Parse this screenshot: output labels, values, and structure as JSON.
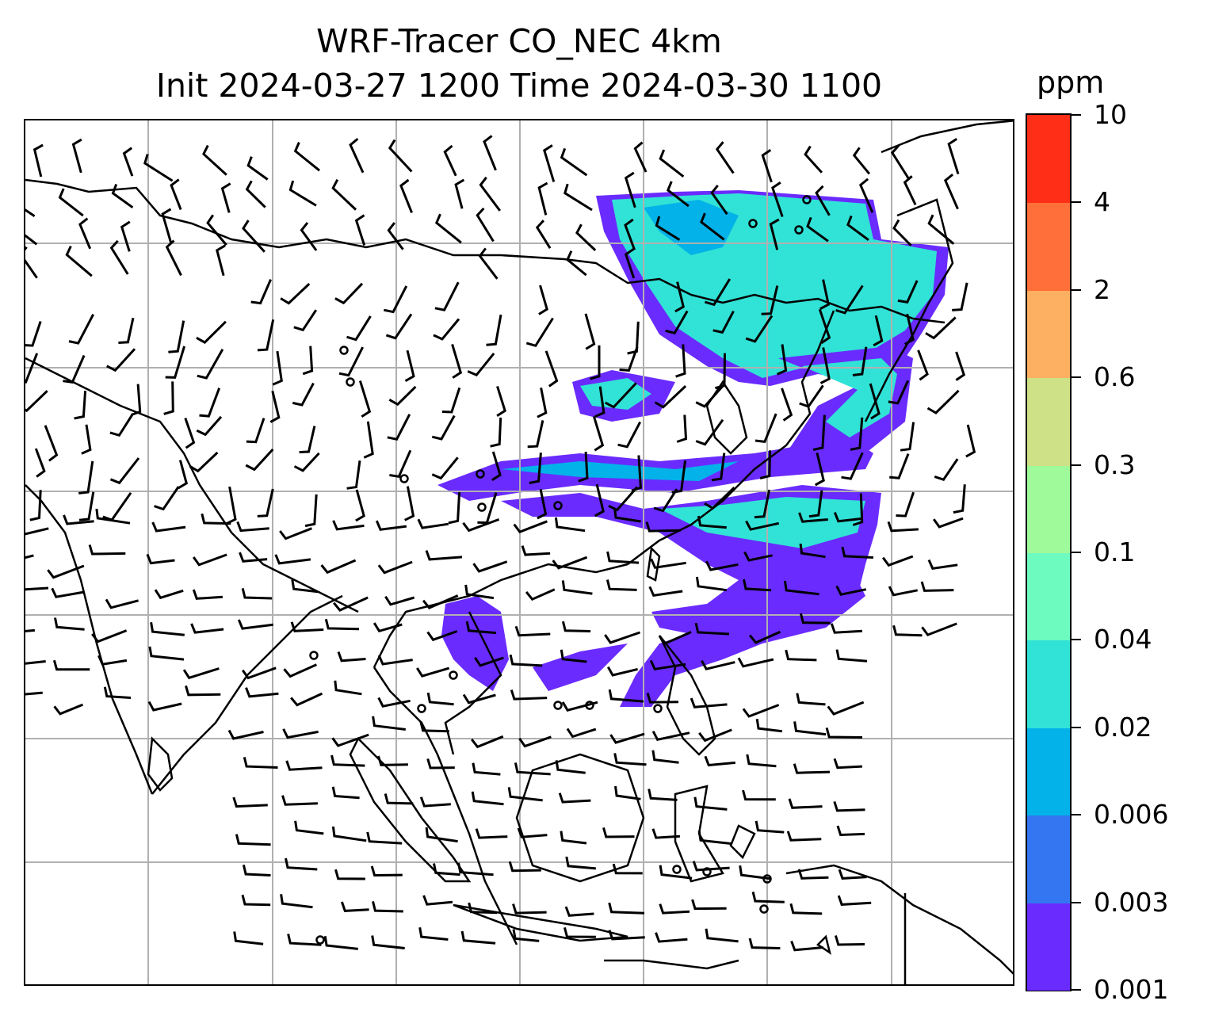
{
  "title_line1": "WRF-Tracer CO_NEC 4km",
  "title_line2": "Init 2024-03-27 1200 Time 2024-03-30 1100",
  "colorbar": {
    "unit": "ppm",
    "levels": [
      "0.001",
      "0.003",
      "0.006",
      "0.02",
      "0.04",
      "0.1",
      "0.3",
      "0.6",
      "2",
      "4",
      "10"
    ],
    "colors": [
      "#6a2bff",
      "#3476f2",
      "#03b2e8",
      "#31e2d6",
      "#6efbc0",
      "#9ffa99",
      "#cfe186",
      "#fdb062",
      "#fe6f3a",
      "#ff2e17"
    ]
  },
  "map": {
    "gridlines": true,
    "coastline_color": "#000000",
    "wind_barb_color": "#000000",
    "plume_color_low": "#6a2bff",
    "plume_color_mid": "#31e2d6"
  }
}
